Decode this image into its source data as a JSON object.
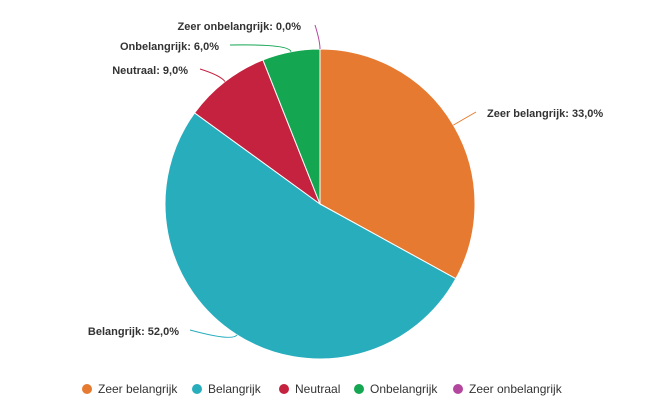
{
  "chart_data": {
    "type": "pie",
    "categories": [
      "Zeer belangrijk",
      "Belangrijk",
      "Neutraal",
      "Onbelangrijk",
      "Zeer onbelangrijk"
    ],
    "values": [
      33.0,
      52.0,
      9.0,
      6.0,
      0.0
    ],
    "data_labels": [
      "Zeer belangrijk: 33,0%",
      "Belangrijk: 52,0%",
      "Neutraal: 9,0%",
      "Onbelangrijk: 6,0%",
      "Zeer onbelangrijk: 0,0%"
    ],
    "colors": [
      "#e67a30",
      "#28adbd",
      "#c4223f",
      "#14a651",
      "#b3479e"
    ],
    "legend": {
      "placement": "bottom",
      "entries": [
        "Zeer belangrijk",
        "Belangrijk",
        "Neutraal",
        "Onbelangrijk",
        "Zeer onbelangrijk"
      ]
    },
    "start_angle_deg": 0,
    "direction": "clockwise"
  }
}
